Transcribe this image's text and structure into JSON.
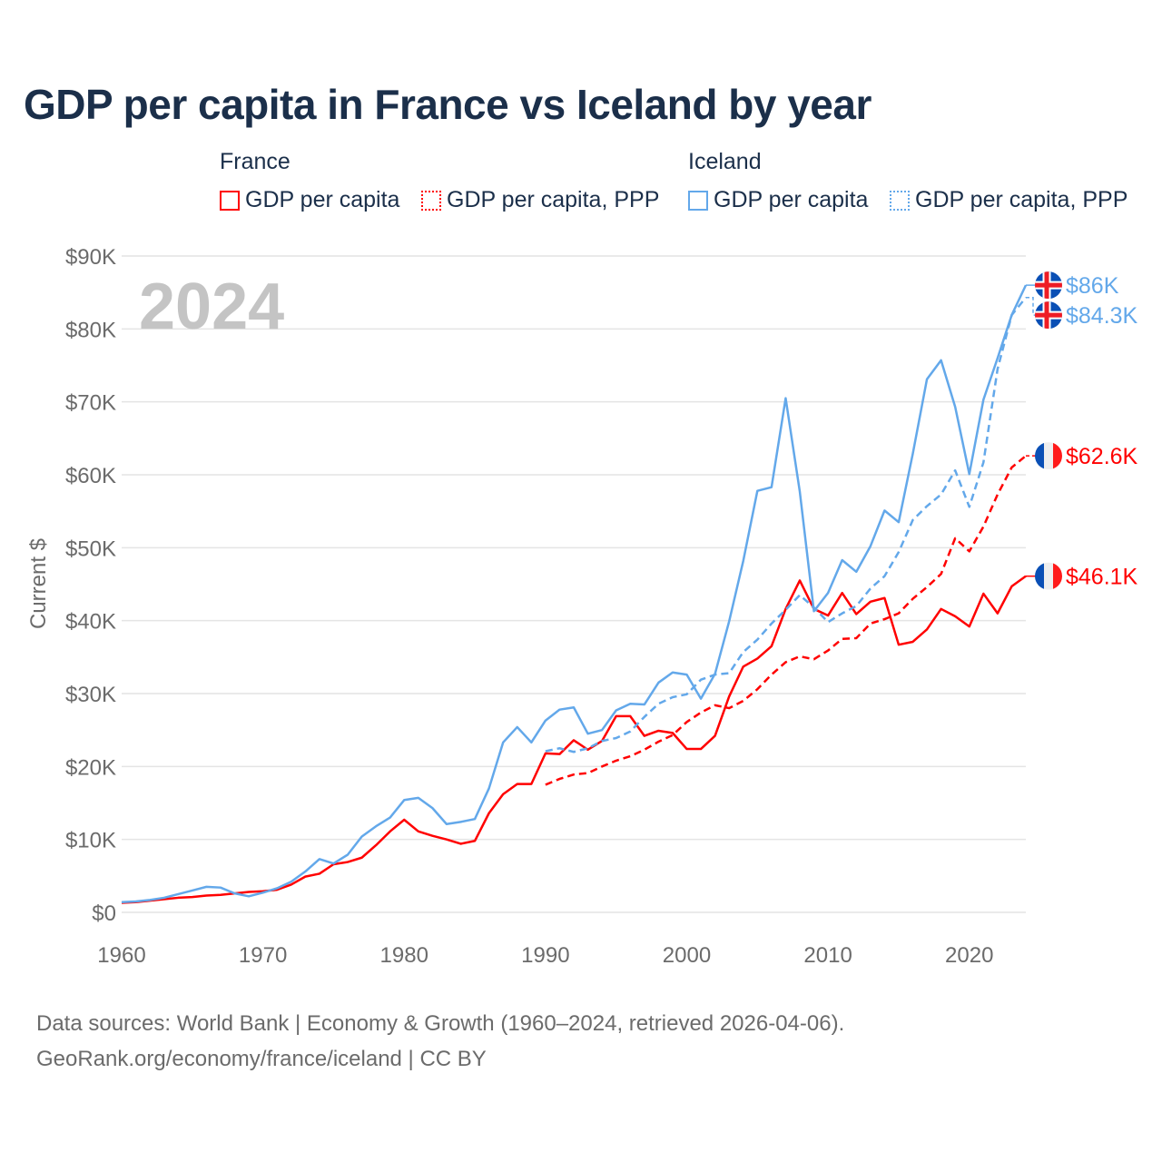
{
  "title": "GDP per capita in France vs Iceland by year",
  "legend": {
    "groups": [
      {
        "name": "France",
        "items": [
          "GDP per capita",
          "GDP per capita, PPP"
        ]
      },
      {
        "name": "Iceland",
        "items": [
          "GDP per capita",
          "GDP per capita, PPP"
        ]
      }
    ]
  },
  "year_label": "2024",
  "footer": {
    "line1": "Data sources: World Bank | Economy & Growth (1960–2024, retrieved 2026-04-06).",
    "line2": "GeoRank.org/economy/france/iceland | CC BY"
  },
  "colors": {
    "france": "#ff0000",
    "iceland": "#63a8ea",
    "title": "#1b2f4a"
  },
  "chart_data": {
    "type": "line",
    "title": "GDP per capita in France vs Iceland by year",
    "xlabel": "",
    "ylabel": "Current $",
    "xlim": [
      1960,
      2024
    ],
    "ylim": [
      0,
      90000
    ],
    "x_ticks": [
      1960,
      1970,
      1980,
      1990,
      2000,
      2010,
      2020
    ],
    "y_ticks": [
      0,
      10000,
      20000,
      30000,
      40000,
      50000,
      60000,
      70000,
      80000,
      90000
    ],
    "y_tick_labels": [
      "$0",
      "$10K",
      "$20K",
      "$30K",
      "$40K",
      "$50K",
      "$60K",
      "$70K",
      "$80K",
      "$90K"
    ],
    "grid": true,
    "legend_position": "top",
    "series": [
      {
        "name": "France GDP per capita",
        "country": "france",
        "dashed": false,
        "start_year": 1960,
        "end_label": "$46.1K",
        "values": [
          1.3,
          1.4,
          1.6,
          1.8,
          2.0,
          2.1,
          2.3,
          2.4,
          2.6,
          2.8,
          2.9,
          3.1,
          3.8,
          4.9,
          5.3,
          6.6,
          6.9,
          7.5,
          9.2,
          11.1,
          12.7,
          11.1,
          10.5,
          10.0,
          9.4,
          9.8,
          13.6,
          16.2,
          17.6,
          17.6,
          21.8,
          21.7,
          23.6,
          22.3,
          23.5,
          26.9,
          26.9,
          24.2,
          24.9,
          24.6,
          22.4,
          22.4,
          24.2,
          29.6,
          33.7,
          34.8,
          36.5,
          41.6,
          45.5,
          41.6,
          40.7,
          43.8,
          40.9,
          42.6,
          43.1,
          36.7,
          37.1,
          38.8,
          41.6,
          40.6,
          39.2,
          43.7,
          41.0,
          44.7,
          46.1
        ]
      },
      {
        "name": "France GDP per capita, PPP",
        "country": "france",
        "dashed": true,
        "start_year": 1990,
        "end_label": "$62.6K",
        "values": [
          17.5,
          18.3,
          18.9,
          19.1,
          20.0,
          20.8,
          21.4,
          22.3,
          23.4,
          24.3,
          26.1,
          27.4,
          28.4,
          28.0,
          29.0,
          30.6,
          32.6,
          34.3,
          35.1,
          34.7,
          35.9,
          37.5,
          37.6,
          39.6,
          40.2,
          41.0,
          43.0,
          44.6,
          46.4,
          51.3,
          49.5,
          52.9,
          57.3,
          61.0,
          62.6
        ]
      },
      {
        "name": "Iceland GDP per capita",
        "country": "iceland",
        "dashed": false,
        "start_year": 1960,
        "end_label": "$86K",
        "values": [
          1.4,
          1.5,
          1.7,
          2.0,
          2.5,
          3.0,
          3.5,
          3.4,
          2.6,
          2.2,
          2.7,
          3.3,
          4.2,
          5.6,
          7.3,
          6.7,
          7.9,
          10.4,
          11.8,
          13.0,
          15.4,
          15.7,
          14.3,
          12.1,
          12.4,
          12.8,
          17.0,
          23.3,
          25.4,
          23.3,
          26.3,
          27.8,
          28.1,
          24.5,
          25.0,
          27.7,
          28.6,
          28.5,
          31.5,
          32.9,
          32.6,
          29.3,
          32.7,
          39.9,
          48.2,
          57.8,
          58.3,
          70.5,
          57.7,
          41.3,
          43.8,
          48.3,
          46.7,
          50.2,
          55.1,
          53.5,
          62.9,
          73.1,
          75.7,
          69.3,
          60.1,
          70.3,
          76.0,
          81.9,
          86.0
        ]
      },
      {
        "name": "Iceland GDP per capita, PPP",
        "country": "iceland",
        "dashed": true,
        "start_year": 1990,
        "end_label": "$84.3K",
        "values": [
          22.1,
          22.5,
          22.0,
          22.5,
          23.5,
          23.9,
          24.8,
          26.8,
          28.6,
          29.5,
          29.9,
          31.9,
          32.6,
          32.8,
          35.7,
          37.4,
          39.6,
          41.5,
          43.5,
          41.8,
          39.8,
          41.0,
          42.0,
          44.4,
          46.1,
          49.4,
          53.8,
          55.7,
          57.3,
          60.6,
          55.6,
          61.7,
          74.5,
          81.9,
          84.3
        ]
      }
    ],
    "value_unit": "thousand USD"
  }
}
